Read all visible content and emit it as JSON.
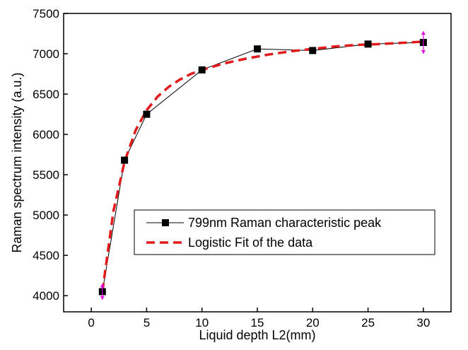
{
  "chart_data": {
    "type": "line",
    "xlabel": "Liquid depth L2(mm)",
    "ylabel": "Raman spectrum intensity (a.u.)",
    "xlim": [
      -2.5,
      32.5
    ],
    "ylim": [
      3800,
      7500
    ],
    "xticks": [
      0,
      5,
      10,
      15,
      20,
      25,
      30
    ],
    "yticks": [
      4000,
      4500,
      5000,
      5500,
      6000,
      6500,
      7000,
      7500
    ],
    "grid": false,
    "legend_position": "center-right",
    "series": [
      {
        "name": "799nm Raman characteristic peak",
        "style": "line-square-marker",
        "color": "#000000",
        "x": [
          1,
          3,
          5,
          10,
          15,
          20,
          25,
          30
        ],
        "y": [
          4050,
          5680,
          6250,
          6800,
          7060,
          7040,
          7120,
          7140
        ]
      },
      {
        "name": "Logistic Fit of the data",
        "style": "dashed",
        "color": "#e31a1c",
        "x": [
          1,
          2,
          3,
          4,
          5,
          6,
          7,
          8,
          9,
          10,
          12,
          14,
          16,
          18,
          20,
          22,
          24,
          26,
          28,
          30
        ],
        "y": [
          4050,
          5050,
          5660,
          6050,
          6300,
          6470,
          6590,
          6680,
          6750,
          6800,
          6880,
          6940,
          6990,
          7030,
          7060,
          7090,
          7110,
          7120,
          7135,
          7150
        ]
      }
    ],
    "error_markers": {
      "color": "#e600e6",
      "points": [
        {
          "x": 1,
          "y": 4050,
          "err": 100
        },
        {
          "x": 30,
          "y": 7140,
          "err": 140
        }
      ]
    }
  }
}
